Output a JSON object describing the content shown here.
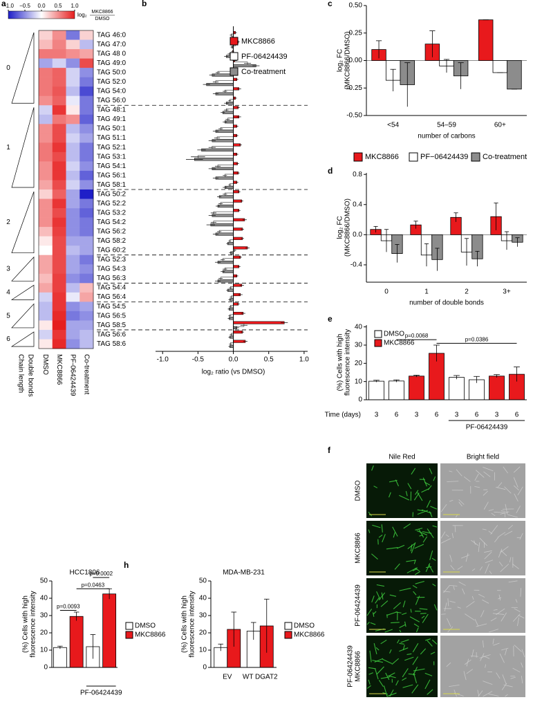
{
  "chart_data": [
    {
      "type": "heatmap",
      "panel": "a",
      "columns": [
        "DMSO",
        "MKC8866",
        "PF-06424439",
        "Co-treatment"
      ],
      "rows": [
        "TAG 46:0",
        "TAG 47:0",
        "TAG 48 0",
        "TAG 49:0",
        "TAG 50:0",
        "TAG 52:0",
        "TAG 54:0",
        "TAG 56:0",
        "TAG 48:1",
        "TAG 49:1",
        "TAG 50:1",
        "TAG 51:1",
        "TAG 52:1",
        "TAG 53:1",
        "TAG 54:1",
        "TAG 56:1",
        "TAG 58:1",
        "TAG 50:2",
        "TAG 52:2",
        "TAG 53:2",
        "TAG 54:2",
        "TAG 56:2",
        "TAG 58:2",
        "TAG 60:2",
        "TAG 52:3",
        "TAG 54:3",
        "TAG 56:3",
        "TAG 54:4",
        "TAG 56:4",
        "TAG 54:5",
        "TAG 56:5",
        "TAG 58:5",
        "TAG 56:6",
        "TAG 58:6"
      ],
      "values": [
        [
          0.2,
          0.5,
          -0.6,
          0.2
        ],
        [
          0.3,
          0.55,
          0.2,
          -0.3
        ],
        [
          0.6,
          0.6,
          0.5,
          0.4
        ],
        [
          -0.4,
          -0.2,
          -0.5,
          0.8
        ],
        [
          0.6,
          0.7,
          -0.2,
          -0.5
        ],
        [
          0.6,
          0.7,
          -0.2,
          -0.6
        ],
        [
          0.6,
          0.75,
          -0.3,
          -0.8
        ],
        [
          0.5,
          0.7,
          -0.1,
          -0.6
        ],
        [
          -0.2,
          0.9,
          0.1,
          -0.6
        ],
        [
          -0.3,
          0.6,
          0.5,
          -0.7
        ],
        [
          0.5,
          0.8,
          -0.3,
          -0.5
        ],
        [
          0.5,
          0.8,
          -0.2,
          -0.4
        ],
        [
          0.6,
          0.9,
          -0.3,
          -0.6
        ],
        [
          0.6,
          0.8,
          -0.3,
          -0.6
        ],
        [
          0.5,
          0.9,
          -0.2,
          -0.5
        ],
        [
          0.5,
          0.9,
          -0.3,
          -0.7
        ],
        [
          0.4,
          0.8,
          -0.2,
          -0.5
        ],
        [
          0.2,
          0.7,
          -0.4,
          -1.0
        ],
        [
          0.5,
          0.9,
          -0.4,
          -0.6
        ],
        [
          0.5,
          0.8,
          -0.5,
          -0.7
        ],
        [
          0.5,
          0.9,
          -0.5,
          -0.6
        ],
        [
          0.3,
          0.85,
          -0.5,
          -0.6
        ],
        [
          0.1,
          0.8,
          -0.4,
          -0.4
        ],
        [
          0.0,
          0.8,
          -0.3,
          -0.4
        ],
        [
          0.4,
          0.8,
          -0.4,
          -0.6
        ],
        [
          0.4,
          0.8,
          -0.4,
          -0.5
        ],
        [
          0.3,
          0.85,
          -0.5,
          -0.6
        ],
        [
          0.4,
          0.85,
          -0.3,
          0.3
        ],
        [
          -0.2,
          0.9,
          -0.1,
          0.4
        ],
        [
          -0.3,
          0.9,
          -0.5,
          -0.4
        ],
        [
          -0.3,
          0.95,
          -0.6,
          -0.5
        ],
        [
          0.1,
          1.0,
          -0.4,
          -0.4
        ],
        [
          -0.2,
          0.9,
          -0.4,
          -0.3
        ],
        [
          0.1,
          0.95,
          -0.5,
          -0.3
        ]
      ],
      "clim": [
        -1,
        1
      ],
      "cticks": [
        {
          "value": -1,
          "label": "−1.0"
        },
        {
          "value": -0.5,
          "label": "−0.5"
        },
        {
          "value": 0,
          "label": "0.0"
        },
        0.5,
        {
          "value": 1,
          "label": "1.0"
        }
      ],
      "colorbar_label": "log₂",
      "colorbar_numerator": "MKC8866",
      "colorbar_denominator": "DMSO",
      "groups": [
        "0",
        "1",
        "2",
        "3",
        "4",
        "5",
        "6"
      ],
      "group_axis_labels": [
        "Chain length",
        "Double bonds"
      ]
    },
    {
      "type": "hbar",
      "panel": "b",
      "series": [
        {
          "name": "MKC8866",
          "color": "#e8191c",
          "values": [
            0.03,
            0.07,
            -0.01,
            0.02,
            0.0,
            0.05,
            0.08,
            0.03,
            0.07,
            0.08,
            0.05,
            0.05,
            0.1,
            0.05,
            0.06,
            0.07,
            0.05,
            0.08,
            0.12,
            0.08,
            0.16,
            0.13,
            0.13,
            0.2,
            0.1,
            0.08,
            0.05,
            0.12,
            0.1,
            0.07,
            0.14,
            0.72,
            0.13,
            0.17
          ],
          "errors": [
            0.02,
            0.02,
            0.02,
            0.03,
            0.02,
            0.02,
            0.03,
            0.02,
            0.02,
            0.03,
            0.02,
            0.02,
            0.02,
            0.02,
            0.02,
            0.02,
            0.02,
            0.02,
            0.02,
            0.02,
            0.03,
            0.02,
            0.02,
            0.03,
            0.02,
            0.02,
            0.02,
            0.03,
            0.03,
            0.02,
            0.03,
            0.05,
            0.02,
            0.03
          ]
        },
        {
          "name": "PF-06424439",
          "color": "#ffffff",
          "values": [
            -0.03,
            0.03,
            -0.05,
            0.2,
            -0.22,
            -0.25,
            -0.12,
            -0.05,
            -0.1,
            -0.08,
            -0.18,
            -0.23,
            -0.3,
            -0.5,
            -0.22,
            -0.12,
            -0.05,
            -0.12,
            -0.18,
            -0.28,
            -0.28,
            -0.2,
            -0.05,
            0.02,
            -0.15,
            -0.12,
            -0.18,
            -0.04,
            -0.03,
            -0.04,
            -0.05,
            0.15,
            -0.03,
            -0.04
          ],
          "errors": [
            0.02,
            0.02,
            0.03,
            0.05,
            0.03,
            0.04,
            0.03,
            0.02,
            0.03,
            0.03,
            0.03,
            0.04,
            0.05,
            0.1,
            0.04,
            0.03,
            0.02,
            0.03,
            0.03,
            0.04,
            0.04,
            0.03,
            0.02,
            0.02,
            0.03,
            0.03,
            0.03,
            0.02,
            0.02,
            0.02,
            0.02,
            0.05,
            0.02,
            0.02
          ]
        },
        {
          "name": "Co-treatment",
          "color": "#8c8c8c",
          "values": [
            -0.01,
            -0.02,
            -0.1,
            0.32,
            -0.3,
            -0.38,
            -0.25,
            -0.1,
            -0.15,
            -0.12,
            -0.25,
            -0.3,
            -0.45,
            -0.55,
            -0.3,
            -0.25,
            -0.12,
            -0.2,
            -0.22,
            -0.3,
            -0.32,
            -0.25,
            -0.08,
            -0.04,
            -0.22,
            -0.15,
            -0.22,
            -0.08,
            -0.05,
            -0.06,
            -0.06,
            0.05,
            -0.05,
            -0.05
          ],
          "errors": [
            0.02,
            0.02,
            0.03,
            0.05,
            0.04,
            0.05,
            0.04,
            0.03,
            0.03,
            0.03,
            0.04,
            0.05,
            0.06,
            0.12,
            0.05,
            0.04,
            0.03,
            0.03,
            0.03,
            0.05,
            0.06,
            0.04,
            0.02,
            0.02,
            0.04,
            0.03,
            0.04,
            0.02,
            0.02,
            0.02,
            0.02,
            0.03,
            0.02,
            0.02
          ]
        }
      ],
      "xlim": [
        -1.1,
        1.05
      ],
      "xticks": [
        {
          "value": -1,
          "label": "-1.0"
        },
        -0.5,
        {
          "value": 0,
          "label": "0.0"
        },
        0.5,
        {
          "value": 1,
          "label": "1.0"
        }
      ],
      "xlabel": "log₂ ratio (vs DMSO)"
    },
    {
      "type": "bar",
      "panel": "c",
      "categories": [
        "<54",
        "54–59",
        "60+"
      ],
      "series": [
        {
          "name": "MKC8866",
          "color": "#e8191c",
          "values": [
            0.1,
            0.15,
            0.37
          ],
          "errors": [
            0.08,
            0.12,
            0
          ]
        },
        {
          "name": "PF−06424439",
          "color": "#ffffff",
          "values": [
            -0.18,
            -0.05,
            -0.11
          ],
          "errors": [
            0.1,
            0.06,
            0
          ]
        },
        {
          "name": "Co-treatment",
          "color": "#8c8c8c",
          "values": [
            -0.22,
            -0.14,
            -0.26
          ],
          "errors": [
            0.2,
            0.12,
            0
          ]
        }
      ],
      "ylim": [
        -0.5,
        0.5
      ],
      "yticks": [
        {
          "value": -0.5,
          "label": "-0.50"
        },
        -0.25,
        {
          "value": 0,
          "label": "0.00"
        },
        0.25,
        {
          "value": 0.5,
          "label": "0.50"
        }
      ],
      "ylabel": [
        "log₂ FC",
        "(MKC8866/DMSO)"
      ],
      "xlabel": "number of carbons",
      "legend": "below"
    },
    {
      "type": "bar",
      "panel": "d",
      "categories": [
        "0",
        "1",
        "2",
        "3+"
      ],
      "series": [
        {
          "color": "#e8191c",
          "values": [
            0.07,
            0.13,
            0.23,
            0.24
          ],
          "errors": [
            0.04,
            0.05,
            0.06,
            0.18
          ]
        },
        {
          "color": "#ffffff",
          "values": [
            -0.08,
            -0.27,
            -0.23,
            -0.08
          ],
          "errors": [
            0.15,
            0.15,
            0.18,
            0.12
          ]
        },
        {
          "color": "#8c8c8c",
          "values": [
            -0.25,
            -0.33,
            -0.32,
            -0.1
          ],
          "errors": [
            0.12,
            0.15,
            0.1,
            0.06
          ]
        }
      ],
      "ylim": [
        -0.63,
        0.82
      ],
      "yticks": [
        -0.4,
        {
          "value": 0,
          "label": "0.0"
        },
        0.4,
        0.8
      ],
      "ylabel": [
        "log₂ FC",
        "(MKC8866/DMSO)"
      ],
      "xlabel": "number of double bonds"
    },
    {
      "type": "bar",
      "panel": "e",
      "categories": [
        "3",
        "6",
        "3",
        "6",
        "3",
        "6",
        "3",
        "6"
      ],
      "series": [
        {
          "name": "DMSO",
          "color": "#ffffff",
          "values": [
            10.2,
            10.3,
            null,
            null,
            12.3,
            11,
            null,
            null
          ],
          "errors": [
            0.5,
            0.6,
            null,
            null,
            1,
            1.8,
            null,
            null
          ]
        },
        {
          "name": "MKC8866",
          "color": "#e8191c",
          "values": [
            null,
            null,
            13,
            25.5,
            null,
            null,
            13,
            14
          ],
          "errors": [
            null,
            null,
            0.5,
            4.5,
            null,
            null,
            0.8,
            4
          ]
        }
      ],
      "ylim": [
        0,
        41
      ],
      "yticks": [
        0,
        10,
        20,
        30,
        40
      ],
      "ylabel": [
        "(%) Cells with high",
        "fluorescence intensity"
      ],
      "x_title": "Time (days)",
      "group_label": "PF-06424439",
      "annotations": [
        "p=0.0068",
        "p=0.0386"
      ],
      "legend": "top-left"
    },
    {
      "type": "image-grid",
      "panel": "f",
      "columns": [
        "Nile Red",
        "Bright field"
      ],
      "rows": [
        [
          "DMSO"
        ],
        [
          "MKC8866"
        ],
        [
          "PF-06424439"
        ],
        [
          "PF-06424439",
          "MKC8866"
        ]
      ]
    },
    {
      "type": "bar",
      "panel": "g",
      "title": "HCC1806",
      "categories": [
        null,
        null,
        null,
        null
      ],
      "series": [
        {
          "name": "DMSO",
          "color": "#ffffff",
          "values": [
            11.5,
            null,
            12,
            null
          ],
          "errors": [
            0.8,
            null,
            7,
            null
          ]
        },
        {
          "name": "MKC8866",
          "color": "#e8191c",
          "values": [
            null,
            29.5,
            null,
            42.5
          ],
          "errors": [
            null,
            2.5,
            null,
            3
          ]
        }
      ],
      "ylim": [
        0,
        50
      ],
      "yticks": [
        0,
        10,
        20,
        30,
        40,
        50
      ],
      "ylabel": [
        "(%) Cells with high",
        "fluorescence intensity"
      ],
      "group_label": "PF-06424439",
      "annotations": [
        "p=0.0093",
        "p=0.0463",
        "p=0.0002"
      ],
      "legend": "right"
    },
    {
      "type": "bar",
      "panel": "h",
      "title": "MDA-MB-231",
      "categories": [
        "EV",
        "WT DGAT2"
      ],
      "series": [
        {
          "name": "DMSO",
          "color": "#ffffff",
          "values": [
            11.5,
            21
          ],
          "errors": [
            2,
            5
          ]
        },
        {
          "name": "MKC8866",
          "color": "#e8191c",
          "values": [
            22,
            24
          ],
          "errors": [
            10,
            15.5
          ]
        }
      ],
      "ylim": [
        0,
        50
      ],
      "yticks": [
        0,
        10,
        20,
        30,
        40,
        50
      ],
      "ylabel": [
        "(%) Cells with high",
        "fluorescence intensity"
      ],
      "legend": "right"
    }
  ]
}
